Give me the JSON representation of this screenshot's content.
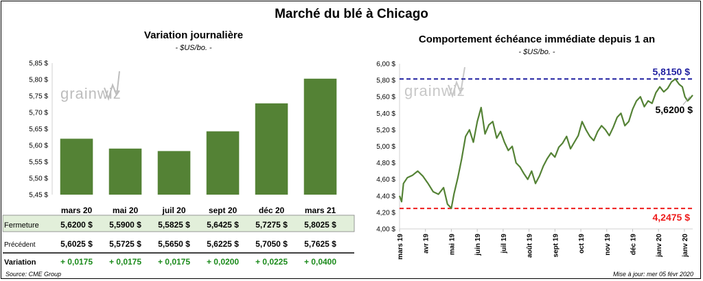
{
  "title": "Marché du blé à Chicago",
  "source": "Source: CME Group",
  "update": "Mise à jour: mer 05 févr 2020",
  "watermark": "grainwiz",
  "colors": {
    "bar": "#548235",
    "line": "#548235",
    "high_line": "#1f1fa0",
    "low_line": "#ee1c1c",
    "positive": "#1a8a1a",
    "table_band": "#e2efda"
  },
  "table": {
    "row_labels": {
      "close": "Fermeture",
      "previous": "Précédent",
      "change": "Variation"
    },
    "close": [
      "5,6200  $",
      "5,5900  $",
      "5,5825  $",
      "5,6425  $",
      "5,7275  $",
      "5,8025  $"
    ],
    "previous": [
      "5,6025  $",
      "5,5725  $",
      "5,5650  $",
      "5,6225  $",
      "5,7050  $",
      "5,7625  $"
    ],
    "change": [
      "+ 0,0175",
      "+ 0,0175",
      "+ 0,0175",
      "+ 0,0200",
      "+ 0,0225",
      "+ 0,0400"
    ]
  },
  "chart_data": [
    {
      "type": "bar",
      "title": "Variation  journalière",
      "subtitle": "- $US/bo. -",
      "categories": [
        "mars 20",
        "mai 20",
        "juil 20",
        "sept 20",
        "déc 20",
        "mars 21"
      ],
      "values": [
        5.62,
        5.59,
        5.5825,
        5.6425,
        5.7275,
        5.8025
      ],
      "ylim": [
        5.45,
        5.85
      ],
      "yticks": [
        "5,45 $",
        "5,50 $",
        "5,55 $",
        "5,60 $",
        "5,65 $",
        "5,70 $",
        "5,75 $",
        "5,80 $",
        "5,85 $"
      ],
      "ytick_values": [
        5.45,
        5.5,
        5.55,
        5.6,
        5.65,
        5.7,
        5.75,
        5.8,
        5.85
      ],
      "grid": false
    },
    {
      "type": "line",
      "title": "Comportement  échéance immédiate depuis 1 an",
      "subtitle": "- $US/bo. -",
      "ylim": [
        4.0,
        6.0
      ],
      "yticks": [
        "4,00 $",
        "4,20 $",
        "4,40 $",
        "4,60 $",
        "4,80 $",
        "5,00 $",
        "5,20 $",
        "5,40 $",
        "5,60 $",
        "5,80 $",
        "6,00 $"
      ],
      "ytick_values": [
        4.0,
        4.2,
        4.4,
        4.6,
        4.8,
        5.0,
        5.2,
        5.4,
        5.6,
        5.8,
        6.0
      ],
      "xticks": [
        "mars 19",
        "avr 19",
        "mai 19",
        "juin 19",
        "juil 19",
        "août 19",
        "sept 19",
        "oct 19",
        "nov 19",
        "déc 19",
        "janv 20",
        "janv 20"
      ],
      "xtick_values": [
        0,
        1,
        2,
        3,
        4,
        5,
        6,
        7,
        8,
        9,
        10,
        11
      ],
      "high": {
        "value": 5.815,
        "label": "5,8150  $"
      },
      "low": {
        "value": 4.2475,
        "label": "4,2475  $"
      },
      "last": {
        "value": 5.62,
        "label": "5,6200  $"
      },
      "x": [
        0,
        0.08,
        0.15,
        0.3,
        0.5,
        0.7,
        0.9,
        1.1,
        1.3,
        1.5,
        1.7,
        1.85,
        2.0,
        2.1,
        2.25,
        2.4,
        2.55,
        2.7,
        2.85,
        3.0,
        3.15,
        3.3,
        3.45,
        3.6,
        3.75,
        3.9,
        4.05,
        4.2,
        4.35,
        4.5,
        4.65,
        4.8,
        4.95,
        5.1,
        5.25,
        5.4,
        5.55,
        5.7,
        5.85,
        6.0,
        6.15,
        6.3,
        6.45,
        6.6,
        6.75,
        6.9,
        7.05,
        7.2,
        7.35,
        7.5,
        7.65,
        7.8,
        7.95,
        8.1,
        8.25,
        8.4,
        8.55,
        8.7,
        8.85,
        9.0,
        9.15,
        9.3,
        9.45,
        9.6,
        9.75,
        9.9,
        10.05,
        10.2,
        10.35,
        10.5,
        10.65,
        10.8,
        10.92,
        11.02,
        11.12,
        11.22,
        11.32
      ],
      "y": [
        4.4,
        4.33,
        4.55,
        4.62,
        4.65,
        4.7,
        4.64,
        4.55,
        4.45,
        4.42,
        4.5,
        4.3,
        4.25,
        4.42,
        4.62,
        4.85,
        5.12,
        5.2,
        5.05,
        5.3,
        5.47,
        5.15,
        5.26,
        5.3,
        5.1,
        5.18,
        5.05,
        4.95,
        5.0,
        4.8,
        4.75,
        4.67,
        4.6,
        4.7,
        4.55,
        4.64,
        4.76,
        4.85,
        4.92,
        4.87,
        4.99,
        5.04,
        5.12,
        4.97,
        5.05,
        5.13,
        5.3,
        5.2,
        5.12,
        5.07,
        5.18,
        5.25,
        5.2,
        5.13,
        5.23,
        5.35,
        5.4,
        5.25,
        5.3,
        5.45,
        5.55,
        5.6,
        5.48,
        5.55,
        5.52,
        5.65,
        5.72,
        5.66,
        5.7,
        5.78,
        5.815,
        5.75,
        5.72,
        5.6,
        5.55,
        5.58,
        5.62
      ]
    }
  ]
}
